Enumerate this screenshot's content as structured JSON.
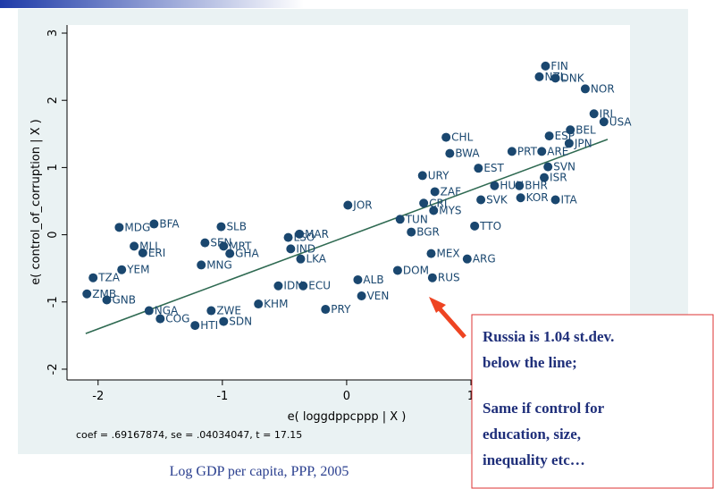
{
  "chart_data": {
    "type": "scatter",
    "caption": "Log GDP per capita, PPP, 2005",
    "xlabel": "e( loggdppcppp | X )",
    "ylabel": "e( control_of_corruption | X )",
    "note": "coef = .69167874, se = .04034047, t = 17.15",
    "annotation": [
      "Russia is 1.04 st.dev.",
      "below the line;",
      "Same if control for",
      "education, size,",
      "inequality etc…"
    ],
    "xlim": [
      -2.25,
      2.28
    ],
    "ylim": [
      -2.16,
      3.12
    ],
    "xticks": [
      -2,
      -1,
      0,
      1
    ],
    "yticks": [
      -2,
      -1,
      0,
      1,
      2,
      3
    ],
    "color": "#1a476f",
    "labels": [
      "FIN",
      "NZL",
      "DNK",
      "NOR",
      "IRL",
      "USA",
      "BEL",
      "ESP",
      "JPN",
      "PRT",
      "ARE",
      "CHL",
      "BWA",
      "EST",
      "SVN",
      "ISR",
      "URY",
      "HUN",
      "BHR",
      "ZAF",
      "CRI",
      "SVK",
      "KOR",
      "ITA",
      "MYS",
      "TTO",
      "JOR",
      "TUN",
      "BGR",
      "MAR",
      "LSO",
      "IND",
      "LKA",
      "MEX",
      "ARG",
      "RUS",
      "DOM",
      "VEN",
      "PRY",
      "SLB",
      "SEN",
      "MRT",
      "GHA",
      "MNG",
      "MDG",
      "BFA",
      "MLI",
      "ERI",
      "YEM",
      "TZA",
      "ZMB",
      "GNB",
      "NGA",
      "COG",
      "HTI",
      "ZWE",
      "SDN",
      "KHM",
      "IDN",
      "ECU",
      "ALB"
    ],
    "x": [
      1.6,
      1.55,
      1.68,
      1.92,
      1.99,
      2.07,
      1.8,
      1.63,
      1.79,
      1.33,
      1.57,
      0.8,
      0.83,
      1.06,
      1.62,
      1.59,
      0.61,
      1.19,
      1.39,
      0.71,
      0.62,
      1.08,
      1.4,
      1.68,
      0.7,
      1.03,
      0.01,
      0.43,
      0.52,
      -0.38,
      -0.47,
      -0.45,
      -0.37,
      0.68,
      0.97,
      0.69,
      0.41,
      0.12,
      -0.17,
      -1.01,
      -1.14,
      -0.99,
      -0.94,
      -1.17,
      -1.83,
      -1.55,
      -1.71,
      -1.64,
      -1.81,
      -2.04,
      -2.09,
      -1.93,
      -1.59,
      -1.5,
      -1.22,
      -1.09,
      -0.99,
      -0.71,
      -0.55,
      -0.35,
      0.09
    ],
    "values": [
      2.51,
      2.35,
      2.33,
      2.17,
      1.8,
      1.68,
      1.56,
      1.47,
      1.36,
      1.24,
      1.24,
      1.45,
      1.21,
      0.99,
      1.01,
      0.85,
      0.88,
      0.73,
      0.73,
      0.64,
      0.47,
      0.52,
      0.55,
      0.52,
      0.36,
      0.13,
      0.44,
      0.23,
      0.04,
      0.01,
      -0.04,
      -0.21,
      -0.36,
      -0.28,
      -0.36,
      -0.64,
      -0.53,
      -0.91,
      -1.11,
      0.12,
      -0.12,
      -0.17,
      -0.28,
      -0.45,
      0.11,
      0.16,
      -0.17,
      -0.27,
      -0.52,
      -0.64,
      -0.88,
      -0.97,
      -1.13,
      -1.25,
      -1.35,
      -1.13,
      -1.29,
      -1.03,
      -0.76,
      -0.76,
      -0.67
    ],
    "fit": {
      "color": "#2f6a52",
      "x": [
        -2.1,
        2.1
      ],
      "values": [
        -1.47,
        1.42
      ]
    }
  }
}
